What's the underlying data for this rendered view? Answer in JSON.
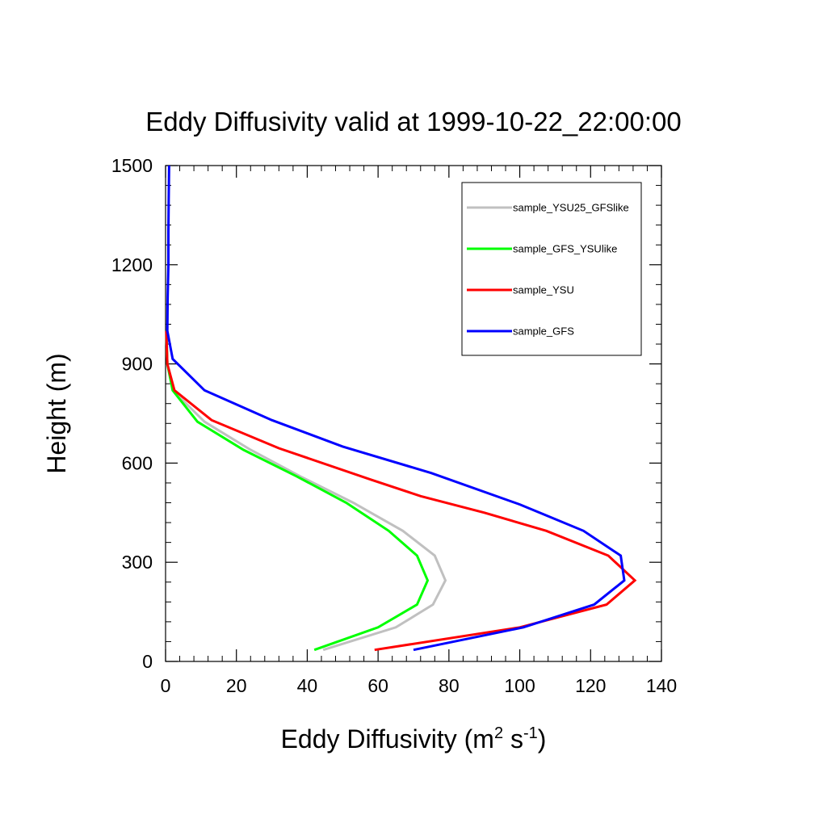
{
  "chart_data": {
    "type": "line",
    "title": "Eddy Diffusivity valid at 1999-10-22_22:00:00",
    "xlabel": {
      "base": "Eddy Diffusivity (m",
      "sup1": "2",
      "mid": " s",
      "sup2": "-1",
      "end": ")"
    },
    "ylabel": "Height (m)",
    "xlim": [
      0,
      140
    ],
    "ylim": [
      0,
      1500
    ],
    "x_ticks": [
      0,
      20,
      40,
      60,
      80,
      100,
      120,
      140
    ],
    "y_ticks": [
      0,
      300,
      600,
      900,
      1200,
      1500
    ],
    "x_ticks_labels": [
      "0",
      "20",
      "40",
      "60",
      "80",
      "100",
      "120",
      "140"
    ],
    "y_ticks_labels": [
      "0",
      "300",
      "600",
      "900",
      "1200",
      "1500"
    ],
    "legend_position": "top-right",
    "grid": false,
    "series": [
      {
        "name": "sample_YSU25_GFSlike",
        "color": "#c0c0c0",
        "points": [
          [
            44.5,
            35
          ],
          [
            65,
            103
          ],
          [
            75.5,
            172
          ],
          [
            79,
            245
          ],
          [
            76,
            320
          ],
          [
            67,
            395
          ],
          [
            53,
            480
          ],
          [
            38,
            560
          ],
          [
            24,
            640
          ],
          [
            11,
            725
          ],
          [
            2,
            820
          ],
          [
            0.5,
            900
          ],
          [
            0.2,
            1000
          ]
        ]
      },
      {
        "name": "sample_GFS_YSUlike",
        "color": "#00ff00",
        "points": [
          [
            42,
            35
          ],
          [
            60,
            103
          ],
          [
            71,
            172
          ],
          [
            74,
            245
          ],
          [
            71,
            320
          ],
          [
            63,
            395
          ],
          [
            51,
            480
          ],
          [
            37,
            560
          ],
          [
            22,
            640
          ],
          [
            9,
            725
          ],
          [
            2,
            820
          ],
          [
            0.5,
            900
          ],
          [
            0.2,
            1000
          ]
        ]
      },
      {
        "name": "sample_YSU",
        "color": "#ff0000",
        "points": [
          [
            59,
            35
          ],
          [
            100,
            103
          ],
          [
            124.5,
            172
          ],
          [
            132.5,
            245
          ],
          [
            125,
            320
          ],
          [
            107.5,
            395
          ],
          [
            90,
            450
          ],
          [
            72,
            500
          ],
          [
            58,
            550
          ],
          [
            32,
            645
          ],
          [
            13,
            730
          ],
          [
            2.5,
            820
          ],
          [
            0.5,
            900
          ],
          [
            0.2,
            1000
          ]
        ]
      },
      {
        "name": "sample_GFS",
        "color": "#0000ff",
        "points": [
          [
            70,
            35
          ],
          [
            101,
            103
          ],
          [
            121,
            172
          ],
          [
            129.5,
            245
          ],
          [
            128.5,
            320
          ],
          [
            118,
            395
          ],
          [
            100,
            475
          ],
          [
            75,
            570
          ],
          [
            50,
            650
          ],
          [
            30,
            730
          ],
          [
            11,
            820
          ],
          [
            2,
            915
          ],
          [
            0.5,
            1000
          ],
          [
            0.6,
            1100
          ],
          [
            0.8,
            1200
          ],
          [
            0.8,
            1300
          ],
          [
            0.9,
            1400
          ],
          [
            1,
            1500
          ]
        ]
      }
    ]
  }
}
